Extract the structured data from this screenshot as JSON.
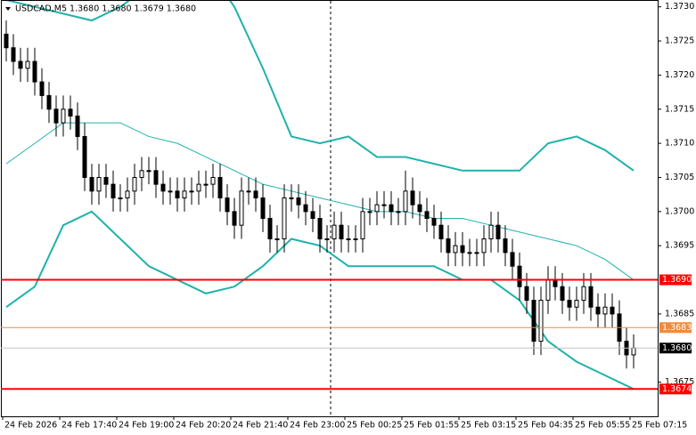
{
  "chart_data": {
    "type": "candlestick",
    "title": "USDCAD,M5  1.3680 1.3680 1.3679 1.3680",
    "categories": [
      "24 Feb 2026",
      null,
      null,
      null,
      null,
      null,
      null,
      null,
      "24 Feb 17:40",
      null,
      null,
      null,
      null,
      null,
      null,
      null,
      "24 Feb 19:00",
      null,
      null,
      null,
      null,
      null,
      null,
      null,
      "24 Feb 20:20",
      null,
      null,
      null,
      null,
      null,
      null,
      null,
      "24 Feb 21:40",
      null,
      null,
      null,
      null,
      null,
      null,
      null,
      "24 Feb 23:00",
      null,
      null,
      null,
      null,
      null,
      null,
      null,
      "25 Feb 00:25",
      null,
      null,
      null,
      null,
      null,
      null,
      null,
      "25 Feb 01:55",
      null,
      null,
      null,
      null,
      null,
      null,
      null,
      "25 Feb 03:15",
      null,
      null,
      null,
      null,
      null,
      null,
      null,
      "25 Feb 04:35",
      null,
      null,
      null,
      null,
      null,
      null,
      null,
      "25 Feb 05:55",
      null,
      null,
      null,
      null,
      null,
      null,
      null,
      "25 Feb 07:15"
    ],
    "open": [
      1.3726,
      1.3724,
      1.3722,
      1.3721,
      1.3722,
      1.3719,
      1.3717,
      1.3715,
      1.3713,
      1.3715,
      1.3714,
      1.3711,
      1.3705,
      1.3703,
      1.3705,
      1.3704,
      1.3702,
      1.3702,
      1.3703,
      1.3705,
      1.3706,
      1.3706,
      1.3704,
      1.3703,
      1.3703,
      1.3702,
      1.3703,
      1.3703,
      1.3704,
      1.3704,
      1.3705,
      1.3702,
      1.37,
      1.3698,
      1.3703,
      1.3703,
      1.3702,
      1.3699,
      1.3696,
      1.3696,
      1.3702,
      1.3702,
      1.3701,
      1.37,
      1.3699,
      1.3696,
      1.3696,
      1.3698,
      1.3696,
      1.3696,
      1.3696,
      1.37,
      1.37,
      1.3701,
      1.3701,
      1.37,
      1.37,
      1.3703,
      1.3701,
      1.37,
      1.3699,
      1.3698,
      1.3696,
      1.3694,
      1.3695,
      1.3694,
      1.3694,
      1.3694,
      1.3696,
      1.3698,
      1.3696,
      1.3694,
      1.3692,
      1.3689,
      1.3687,
      1.3681,
      1.3687,
      1.369,
      1.3689,
      1.3687,
      1.3686,
      1.3687,
      1.3689,
      1.3686,
      1.3685,
      1.3686,
      1.3685,
      1.3681,
      1.3679
    ],
    "high": [
      1.3728,
      1.3726,
      1.3724,
      1.3724,
      1.3724,
      1.3721,
      1.3719,
      1.3717,
      1.3717,
      1.3717,
      1.3716,
      1.3713,
      1.3707,
      1.3707,
      1.3707,
      1.3706,
      1.3704,
      1.3705,
      1.3707,
      1.3708,
      1.3708,
      1.3708,
      1.3706,
      1.3705,
      1.3705,
      1.3705,
      1.3705,
      1.3706,
      1.3706,
      1.3707,
      1.3707,
      1.3704,
      1.3702,
      1.3705,
      1.3705,
      1.3705,
      1.3704,
      1.3701,
      1.3698,
      1.3704,
      1.3704,
      1.3704,
      1.3703,
      1.3702,
      1.3701,
      1.3698,
      1.37,
      1.37,
      1.3698,
      1.3698,
      1.3702,
      1.3702,
      1.3703,
      1.3703,
      1.3703,
      1.3702,
      1.3706,
      1.3705,
      1.3703,
      1.3702,
      1.3701,
      1.37,
      1.3698,
      1.3697,
      1.3697,
      1.3696,
      1.3696,
      1.3698,
      1.37,
      1.37,
      1.3698,
      1.3696,
      1.3694,
      1.3691,
      1.3689,
      1.3689,
      1.3692,
      1.3692,
      1.3691,
      1.3689,
      1.3689,
      1.3691,
      1.3691,
      1.3688,
      1.3688,
      1.3688,
      1.3687,
      1.3683,
      1.3682
    ],
    "low": [
      1.3722,
      1.372,
      1.3719,
      1.3719,
      1.3717,
      1.3715,
      1.3713,
      1.3711,
      1.3711,
      1.3712,
      1.3709,
      1.3703,
      1.3701,
      1.3701,
      1.3702,
      1.37,
      1.37,
      1.37,
      1.3701,
      1.3703,
      1.3704,
      1.3702,
      1.3701,
      1.3701,
      1.37,
      1.37,
      1.3701,
      1.3701,
      1.3702,
      1.3702,
      1.37,
      1.3698,
      1.3696,
      1.3696,
      1.3701,
      1.37,
      1.3697,
      1.3694,
      1.3694,
      1.3694,
      1.37,
      1.3699,
      1.3698,
      1.3697,
      1.3694,
      1.3694,
      1.3694,
      1.3694,
      1.3694,
      1.3694,
      1.3694,
      1.3698,
      1.3698,
      1.3699,
      1.3698,
      1.3698,
      1.3698,
      1.3699,
      1.3698,
      1.3697,
      1.3696,
      1.3694,
      1.3692,
      1.3692,
      1.3692,
      1.3692,
      1.3692,
      1.3692,
      1.3694,
      1.3694,
      1.3692,
      1.369,
      1.3687,
      1.3685,
      1.3679,
      1.3679,
      1.3685,
      1.3687,
      1.3685,
      1.3684,
      1.3684,
      1.3685,
      1.3684,
      1.3683,
      1.3683,
      1.3683,
      1.3679,
      1.3677,
      1.3677
    ],
    "close": [
      1.3724,
      1.3722,
      1.3721,
      1.3722,
      1.3719,
      1.3717,
      1.3715,
      1.3713,
      1.3715,
      1.3714,
      1.3711,
      1.3705,
      1.3703,
      1.3705,
      1.3704,
      1.3702,
      1.3702,
      1.3703,
      1.3705,
      1.3706,
      1.3706,
      1.3704,
      1.3703,
      1.3703,
      1.3702,
      1.3703,
      1.3703,
      1.3704,
      1.3704,
      1.3705,
      1.3702,
      1.37,
      1.3698,
      1.3703,
      1.3703,
      1.3702,
      1.3699,
      1.3696,
      1.3696,
      1.3702,
      1.3702,
      1.3701,
      1.37,
      1.3699,
      1.3696,
      1.3696,
      1.3698,
      1.3696,
      1.3696,
      1.3696,
      1.37,
      1.37,
      1.3701,
      1.3701,
      1.37,
      1.37,
      1.3703,
      1.3701,
      1.37,
      1.3699,
      1.3698,
      1.3696,
      1.3694,
      1.3695,
      1.3694,
      1.3694,
      1.3694,
      1.3696,
      1.3698,
      1.3696,
      1.3694,
      1.3692,
      1.3689,
      1.3687,
      1.3681,
      1.3687,
      1.369,
      1.3689,
      1.3687,
      1.3686,
      1.3687,
      1.3689,
      1.3686,
      1.3685,
      1.3686,
      1.3685,
      1.3681,
      1.3679,
      1.368
    ],
    "candle_color": "#000000",
    "bands": [
      {
        "color": "#20b2aa",
        "width": 2,
        "x": [
          0,
          4,
          8,
          12,
          16,
          20,
          24,
          28,
          32,
          36,
          40,
          44,
          48,
          52,
          56,
          60,
          64,
          68,
          72,
          76,
          80,
          84,
          88
        ],
        "values": [
          1.3731,
          1.373,
          1.3729,
          1.3728,
          1.373,
          1.3733,
          1.3736,
          1.3736,
          1.373,
          1.3721,
          1.3711,
          1.371,
          1.3711,
          1.3708,
          1.3708,
          1.3707,
          1.3706,
          1.3706,
          1.3706,
          1.371,
          1.3711,
          1.3709,
          1.3706
        ]
      },
      {
        "color": "#20b2aa",
        "width": 1,
        "x": [
          0,
          4,
          8,
          12,
          16,
          20,
          24,
          28,
          32,
          36,
          40,
          44,
          48,
          52,
          56,
          60,
          64,
          68,
          72,
          76,
          80,
          84,
          88
        ],
        "values": [
          1.3707,
          1.371,
          1.3713,
          1.3713,
          1.3713,
          1.3711,
          1.371,
          1.3708,
          1.3706,
          1.3704,
          1.3703,
          1.3702,
          1.3701,
          1.37,
          1.37,
          1.3699,
          1.3699,
          1.3698,
          1.3697,
          1.3696,
          1.3695,
          1.3693,
          1.369
        ]
      },
      {
        "color": "#20b2aa",
        "width": 2,
        "x": [
          0,
          4,
          8,
          12,
          16,
          20,
          24,
          28,
          32,
          36,
          40,
          44,
          48,
          52,
          56,
          60,
          64,
          68,
          72,
          76,
          80,
          84,
          88
        ],
        "values": [
          1.3686,
          1.3689,
          1.3698,
          1.37,
          1.3696,
          1.3692,
          1.369,
          1.3688,
          1.3689,
          1.3692,
          1.3696,
          1.3695,
          1.3692,
          1.3692,
          1.3692,
          1.3692,
          1.369,
          1.369,
          1.3687,
          1.3681,
          1.3678,
          1.3676,
          1.3674
        ]
      }
    ],
    "levels": [
      {
        "value": 1.369,
        "label": "1.3690",
        "color": "#ff0000"
      },
      {
        "value": 1.3683,
        "label": "1.3683",
        "color": "#f08a3c"
      },
      {
        "value": 1.3674,
        "label": "1.3674",
        "color": "#ff0000"
      }
    ],
    "last_price": {
      "value": 1.368,
      "label": "1.3680",
      "color": "#c0c0c0"
    },
    "ylim": [
      1.367,
      1.3731
    ],
    "yticks": [
      {
        "value": 1.3675,
        "label": "1.3675"
      },
      {
        "value": 1.3685,
        "label": "1.3685"
      },
      {
        "value": 1.3695,
        "label": "1.3695"
      },
      {
        "value": 1.37,
        "label": "1.3700"
      },
      {
        "value": 1.3705,
        "label": "1.3705"
      },
      {
        "value": 1.371,
        "label": "1.3710"
      },
      {
        "value": 1.3715,
        "label": "1.3715"
      },
      {
        "value": 1.372,
        "label": "1.3720"
      },
      {
        "value": 1.3725,
        "label": "1.3725"
      },
      {
        "value": 1.373,
        "label": "1.3730"
      }
    ]
  }
}
